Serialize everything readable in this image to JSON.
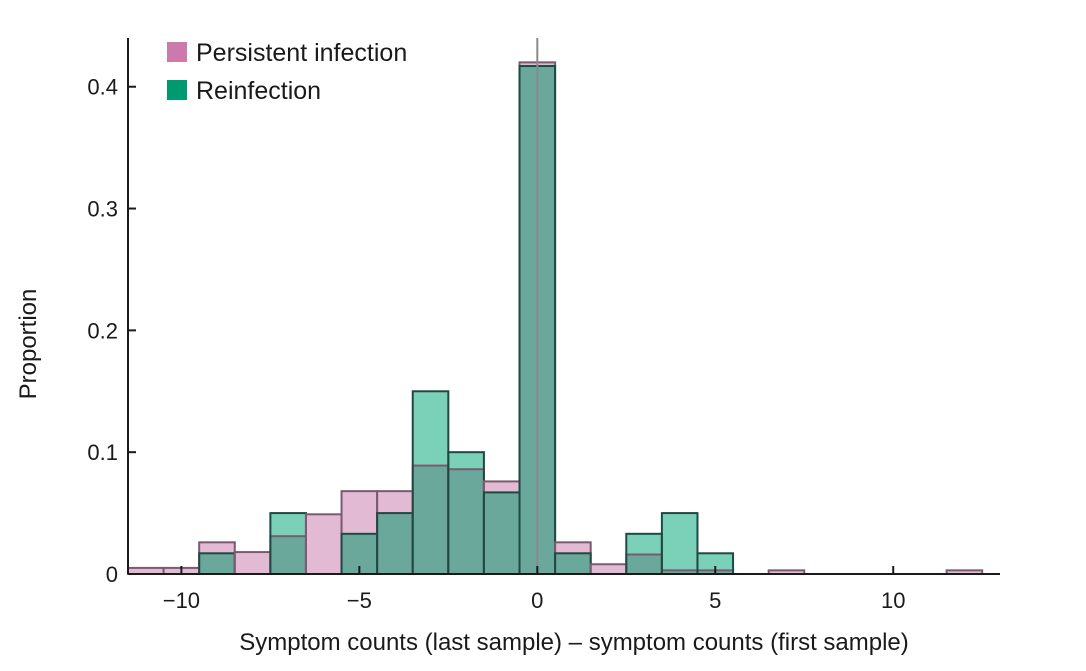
{
  "chart_data": {
    "type": "bar",
    "subtype": "overlaid-histogram",
    "xlabel": "Symptom counts (last sample) – symptom counts (first sample)",
    "ylabel": "Proportion",
    "xlim": [
      -11.5,
      13
    ],
    "ylim": [
      0,
      0.44
    ],
    "xticks": [
      -10,
      -5,
      0,
      5,
      10
    ],
    "xtick_labels": [
      "−10",
      "−5",
      "0",
      "5",
      "10"
    ],
    "yticks": [
      0,
      0.1,
      0.2,
      0.3,
      0.4
    ],
    "ytick_labels": [
      "0",
      "0.1",
      "0.2",
      "0.3",
      "0.4"
    ],
    "bin_width": 1,
    "bin_centers": [
      -11,
      -10,
      -9,
      -8,
      -7,
      -6,
      -5,
      -4,
      -3,
      -2,
      -1,
      0,
      1,
      2,
      3,
      4,
      5,
      6,
      7,
      8,
      9,
      10,
      11,
      12
    ],
    "vline_x": 0,
    "legend_position": "top-left",
    "series": [
      {
        "name": "Persistent infection",
        "color": "#d9a3c5",
        "legend_color": "#cc7aab",
        "values": [
          0.005,
          0.005,
          0.026,
          0.018,
          0.031,
          0.049,
          0.068,
          0.068,
          0.089,
          0.086,
          0.076,
          0.42,
          0.026,
          0.008,
          0.016,
          0.003,
          0.003,
          0,
          0.003,
          0,
          0,
          0,
          0,
          0.003
        ]
      },
      {
        "name": "Reinfection",
        "color": "#2ab38c",
        "legend_color": "#009a70",
        "values": [
          0,
          0,
          0.017,
          0,
          0.05,
          0,
          0.033,
          0.05,
          0.15,
          0.1,
          0.067,
          0.417,
          0.017,
          0,
          0.033,
          0.05,
          0.017,
          0,
          0,
          0,
          0,
          0,
          0,
          0
        ]
      }
    ],
    "overlap_color": "#6aa89c",
    "edge_color": "#1f4a42",
    "pink_edge_color": "#7a5a6e"
  }
}
